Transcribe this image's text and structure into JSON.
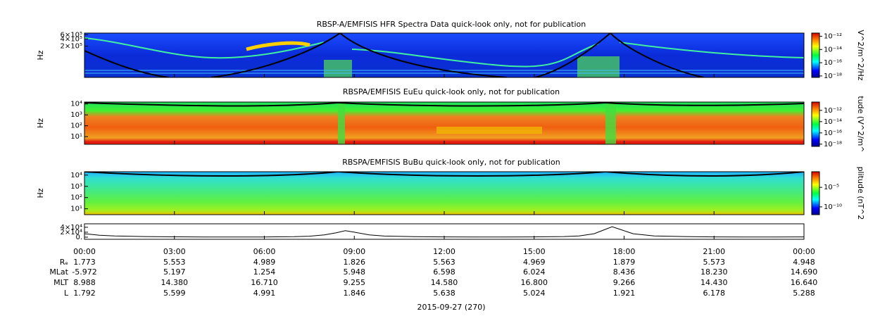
{
  "chart_data": [
    {
      "type": "spectrogram",
      "title": "RBSP-A/EMFISIS  HFR Spectra Data quick-look only, not for publication",
      "ylabel": "Hz",
      "log": true,
      "ylim": [
        10000,
        700000
      ],
      "yticks": [
        {
          "value": 200000,
          "label": "2×10⁵"
        },
        {
          "value": 400000,
          "label": "4×10⁵"
        },
        {
          "value": 600000,
          "label": "6×10⁵"
        }
      ],
      "colorbar": {
        "label": "V^2/m^2/Hz",
        "lim": [
          6e-19,
          3e-12
        ],
        "ticks": [
          {
            "value": 1e-12,
            "label": "10⁻¹²"
          },
          {
            "value": 1e-14,
            "label": "10⁻¹⁴"
          },
          {
            "value": 1e-16,
            "label": "10⁻¹⁶"
          },
          {
            "value": 1e-18,
            "label": "10⁻¹⁸"
          }
        ]
      }
    },
    {
      "type": "spectrogram",
      "title": "RBSPA/EMFISIS  EuEu quick-look only, not for publication",
      "ylabel": "Hz",
      "log": true,
      "ylim": [
        2,
        15000
      ],
      "yticks": [
        {
          "value": 10,
          "label": "10¹"
        },
        {
          "value": 100,
          "label": "10²"
        },
        {
          "value": 1000,
          "label": "10³"
        },
        {
          "value": 10000,
          "label": "10⁴"
        }
      ],
      "colorbar": {
        "label": "tude (V^2/m^",
        "lim": [
          4e-19,
          3e-11
        ],
        "ticks": [
          {
            "value": 1e-12,
            "label": "10⁻¹²"
          },
          {
            "value": 1e-14,
            "label": "10⁻¹⁴"
          },
          {
            "value": 1e-16,
            "label": "10⁻¹⁶"
          },
          {
            "value": 1e-18,
            "label": "10⁻¹⁸"
          }
        ]
      }
    },
    {
      "type": "spectrogram",
      "title": "RBSPA/EMFISIS  BuBu quick-look only, not for publication",
      "ylabel": "Hz",
      "log": true,
      "ylim": [
        3,
        20000
      ],
      "yticks": [
        {
          "value": 10,
          "label": "10¹"
        },
        {
          "value": 100,
          "label": "10²"
        },
        {
          "value": 1000,
          "label": "10³"
        },
        {
          "value": 10000,
          "label": "10⁴"
        }
      ],
      "colorbar": {
        "label": "plitude (nT^2",
        "lim": [
          1e-12,
          0.1
        ],
        "ticks": [
          {
            "value": 1e-05,
            "label": "10⁻⁵"
          },
          {
            "value": 1e-10,
            "label": "10⁻¹⁰"
          }
        ]
      }
    },
    {
      "type": "line",
      "color": "#000000",
      "x": [
        0,
        0.5,
        1,
        2,
        3,
        4,
        5,
        6,
        7,
        7.5,
        8,
        8.4,
        8.7,
        9,
        9.5,
        10,
        11,
        12,
        13,
        14,
        15,
        16,
        16.5,
        17,
        17.3,
        17.6,
        17.9,
        18.3,
        19,
        20,
        21,
        22,
        23,
        24
      ],
      "values": [
        14000,
        8000,
        5000,
        2500,
        1500,
        800,
        600,
        800,
        2000,
        4000,
        9000,
        18000,
        26000,
        20000,
        9000,
        4500,
        2000,
        1000,
        600,
        600,
        1000,
        2500,
        5000,
        14000,
        28000,
        42000,
        30000,
        14000,
        5000,
        2500,
        1200,
        700,
        800,
        1200
      ],
      "ylim": [
        -8600,
        54000
      ],
      "yticks": [
        {
          "value": 0,
          "label": "0."
        },
        {
          "value": 20000,
          "label": "2×10⁴"
        },
        {
          "value": 40000,
          "label": "4×10⁴"
        }
      ],
      "xlim": [
        0,
        24
      ],
      "xticks": [
        {
          "value": 0,
          "label": "00:00"
        },
        {
          "value": 3,
          "label": "03:00"
        },
        {
          "value": 6,
          "label": "06:00"
        },
        {
          "value": 9,
          "label": "09:00"
        },
        {
          "value": 12,
          "label": "12:00"
        },
        {
          "value": 15,
          "label": "15:00"
        },
        {
          "value": 18,
          "label": "18:00"
        },
        {
          "value": 21,
          "label": "21:00"
        },
        {
          "value": 24,
          "label": "00:00"
        }
      ],
      "xlabel": "2015-09-27 (270)"
    }
  ],
  "ephemeris": {
    "rows": [
      {
        "label": "Rₑ",
        "values": [
          "1.773",
          "5.553",
          "4.989",
          "1.826",
          "5.563",
          "4.969",
          "1.879",
          "5.573",
          "4.948"
        ]
      },
      {
        "label": "MLat",
        "values": [
          "-5.972",
          "5.197",
          "1.254",
          "5.948",
          "6.598",
          "6.024",
          "8.436",
          "18.230",
          "14.690"
        ]
      },
      {
        "label": "MLT",
        "values": [
          "8.988",
          "14.380",
          "16.710",
          "9.255",
          "14.580",
          "16.800",
          "9.266",
          "14.430",
          "16.640"
        ]
      },
      {
        "label": "L",
        "values": [
          "1.792",
          "5.599",
          "4.991",
          "1.846",
          "5.638",
          "5.024",
          "1.921",
          "6.178",
          "5.288"
        ]
      }
    ]
  }
}
